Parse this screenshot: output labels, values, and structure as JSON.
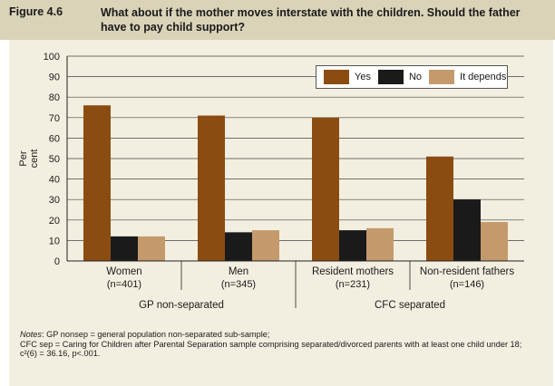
{
  "figure": {
    "number": "Figure 4.6",
    "title": "What about if the mother moves interstate with the children. Should the father have to pay child support?"
  },
  "notes": {
    "line1_label": "Notes",
    "line1_text": ": GP nonsep = general population non-separated sub-sample;",
    "line2": "CFC sep = Caring for Children after Parental Separation sample comprising separated/divorced parents with at least one child under 18;",
    "line3": "c²(6) = 36.16, p<.001."
  },
  "chart_data": {
    "type": "bar",
    "ylabel": "Per cent",
    "ylim": [
      0,
      100
    ],
    "yticks": [
      0,
      10,
      20,
      30,
      40,
      50,
      60,
      70,
      80,
      90,
      100
    ],
    "grid": true,
    "legend_position": "top-right",
    "categories": [
      "Women",
      "Men",
      "Resident mothers",
      "Non-resident fathers"
    ],
    "sample_sizes": [
      "(n=401)",
      "(n=345)",
      "(n=231)",
      "(n=146)"
    ],
    "groups": [
      {
        "label": "GP non-separated",
        "categories": [
          "Women",
          "Men"
        ]
      },
      {
        "label": "CFC separated",
        "categories": [
          "Resident mothers",
          "Non-resident fathers"
        ]
      }
    ],
    "series": [
      {
        "name": "Yes",
        "color": "#8b4c12",
        "values": [
          76,
          71,
          70,
          51
        ]
      },
      {
        "name": "No",
        "color": "#1a1a1a",
        "values": [
          12,
          14,
          15,
          30
        ]
      },
      {
        "name": "It depends",
        "color": "#c49a6c",
        "values": [
          12,
          15,
          16,
          19
        ]
      }
    ]
  }
}
